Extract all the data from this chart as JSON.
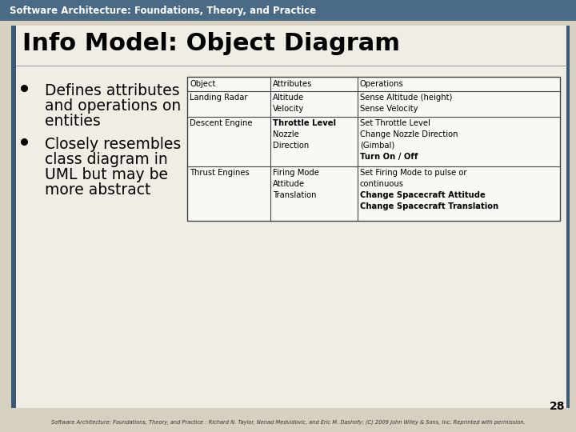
{
  "header_text": "Software Architecture: Foundations, Theory, and Practice",
  "header_bg": "#4a6a85",
  "header_text_color": "#ffffff",
  "outer_bg": "#d6d0c0",
  "inner_bg": "#f0ede4",
  "left_border_color": "#3a5a75",
  "title": "Info Model: Object Diagram",
  "title_color": "#000000",
  "bullet1_line1": "Defines attributes",
  "bullet1_line2": "and operations on",
  "bullet1_line3": "entities",
  "bullet2_line1": "Closely resembles",
  "bullet2_line2": "class diagram in",
  "bullet2_line3": "UML but may be",
  "bullet2_line4": "more abstract",
  "bullet_color": "#000000",
  "table_header": [
    "Object",
    "Attributes",
    "Operations"
  ],
  "row0_col0": "Landing Radar",
  "row0_col1": "Altitude\nVelocity",
  "row0_col2": "Sense Altitude (height)\nSense Velocity",
  "row1_col0": "Descent Engine",
  "row1_col1_line1": "Throttle Level",
  "row1_col1_line2": "Nozzle",
  "row1_col1_line3": "Direction",
  "row1_col2_line1": "Set Throttle Level",
  "row1_col2_line2": "Change Nozzle Direction",
  "row1_col2_line3": "(Gimbal)",
  "row1_col2_line4": "Turn On / Off",
  "row2_col0": "Thrust Engines",
  "row2_col1_line1": "Firing Mode",
  "row2_col1_line2": "Attitude",
  "row2_col1_line3": "Translation",
  "row2_col2_line1": "Set Firing Mode to pulse or",
  "row2_col2_line2": "continuous",
  "row2_col2_line3": "Change Spacecraft Attitude",
  "row2_col2_line4": "Change Spacecraft Translation",
  "table_bg": "#f8f8f5",
  "table_border_color": "#444444",
  "footer_text": "Software Architecture: Foundations, Theory, and Practice : Richard N. Taylor, Nenad Medvidovic, and Eric M. Dashofy; (C) 2009 John Wiley & Sons, Inc. Reprinted with permission.",
  "page_number": "28",
  "page_number_color": "#000000",
  "footer_color": "#333333",
  "right_border_color": "#3a5a75"
}
